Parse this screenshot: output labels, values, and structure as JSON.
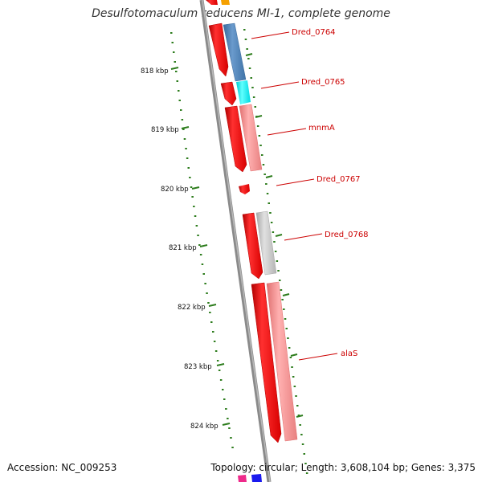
{
  "title": "Desulfotomaculum reducens MI-1, complete genome",
  "footer": {
    "accession_label": "Accession:",
    "accession": "NC_009253",
    "topology_text": "Topology: circular; Length: 3,608,104 bp; Genes: 3,375"
  },
  "colors": {
    "backbone": "#8a8a8a",
    "tick": "#2e7d1e",
    "label": "#cc0000",
    "strand_red": "#ee0000",
    "steelblue": "#4a7fb3",
    "cyan": "#00e8f0",
    "salmon": "#f08a8a",
    "gray": "#bdbdbd",
    "orange": "#f5a000",
    "magenta": "#ee2a8a",
    "blue": "#1a1aee"
  },
  "ruler": {
    "labels": [
      "818 kbp",
      "819 kbp",
      "820 kbp",
      "821 kbp",
      "822 kbp",
      "823 kbp",
      "824 kbp"
    ]
  },
  "gene_labels": [
    "Dred_0764",
    "Dred_0765",
    "mnmA",
    "Dred_0767",
    "Dred_0768",
    "alaS"
  ]
}
